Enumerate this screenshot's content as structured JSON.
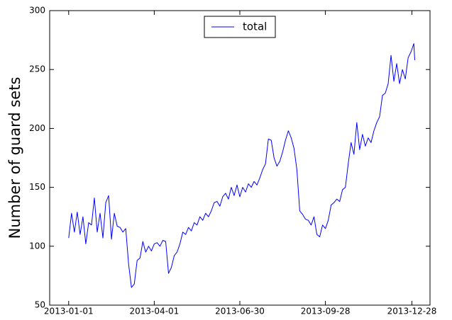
{
  "chart_data": {
    "type": "line",
    "y_label": "Number of guard sets",
    "x": [
      "2013-01-01",
      "2013-01-04",
      "2013-01-07",
      "2013-01-10",
      "2013-01-13",
      "2013-01-16",
      "2013-01-19",
      "2013-01-22",
      "2013-01-25",
      "2013-01-28",
      "2013-01-31",
      "2013-02-03",
      "2013-02-06",
      "2013-02-09",
      "2013-02-12",
      "2013-02-15",
      "2013-02-18",
      "2013-02-21",
      "2013-02-24",
      "2013-02-27",
      "2013-03-02",
      "2013-03-05",
      "2013-03-08",
      "2013-03-11",
      "2013-03-14",
      "2013-03-17",
      "2013-03-20",
      "2013-03-23",
      "2013-03-26",
      "2013-03-29",
      "2013-04-01",
      "2013-04-04",
      "2013-04-07",
      "2013-04-10",
      "2013-04-13",
      "2013-04-16",
      "2013-04-19",
      "2013-04-22",
      "2013-04-25",
      "2013-04-28",
      "2013-05-01",
      "2013-05-04",
      "2013-05-07",
      "2013-05-10",
      "2013-05-13",
      "2013-05-16",
      "2013-05-19",
      "2013-05-22",
      "2013-05-25",
      "2013-05-28",
      "2013-05-31",
      "2013-06-03",
      "2013-06-06",
      "2013-06-09",
      "2013-06-12",
      "2013-06-15",
      "2013-06-18",
      "2013-06-21",
      "2013-06-24",
      "2013-06-27",
      "2013-06-30",
      "2013-07-03",
      "2013-07-06",
      "2013-07-09",
      "2013-07-12",
      "2013-07-15",
      "2013-07-18",
      "2013-07-21",
      "2013-07-24",
      "2013-07-27",
      "2013-07-30",
      "2013-08-02",
      "2013-08-05",
      "2013-08-08",
      "2013-08-11",
      "2013-08-14",
      "2013-08-17",
      "2013-08-20",
      "2013-08-23",
      "2013-08-26",
      "2013-08-29",
      "2013-09-01",
      "2013-09-04",
      "2013-09-07",
      "2013-09-10",
      "2013-09-13",
      "2013-09-16",
      "2013-09-19",
      "2013-09-22",
      "2013-09-25",
      "2013-09-28",
      "2013-10-01",
      "2013-10-04",
      "2013-10-07",
      "2013-10-10",
      "2013-10-13",
      "2013-10-16",
      "2013-10-19",
      "2013-10-22",
      "2013-10-25",
      "2013-10-28",
      "2013-10-31",
      "2013-11-03",
      "2013-11-06",
      "2013-11-09",
      "2013-11-12",
      "2013-11-15",
      "2013-11-18",
      "2013-11-21",
      "2013-11-24",
      "2013-11-27",
      "2013-11-30",
      "2013-12-03",
      "2013-12-06",
      "2013-12-09",
      "2013-12-12",
      "2013-12-15",
      "2013-12-18",
      "2013-12-21",
      "2013-12-24",
      "2013-12-27",
      "2013-12-30",
      "2013-12-31"
    ],
    "series": [
      {
        "name": "total",
        "color": "#0000ff",
        "values": [
          107,
          128,
          112,
          129,
          110,
          125,
          102,
          120,
          118,
          141,
          112,
          128,
          107,
          137,
          143,
          106,
          128,
          117,
          116,
          112,
          115,
          85,
          65,
          68,
          88,
          90,
          104,
          95,
          100,
          96,
          102,
          103,
          100,
          105,
          104,
          77,
          82,
          92,
          95,
          102,
          112,
          110,
          116,
          113,
          120,
          118,
          125,
          122,
          128,
          125,
          130,
          137,
          138,
          134,
          142,
          145,
          140,
          150,
          143,
          152,
          142,
          150,
          146,
          153,
          150,
          155,
          152,
          158,
          165,
          170,
          191,
          190,
          175,
          168,
          172,
          180,
          190,
          198,
          192,
          183,
          165,
          130,
          127,
          123,
          122,
          118,
          125,
          110,
          108,
          118,
          115,
          122,
          135,
          137,
          140,
          138,
          148,
          150,
          170,
          188,
          178,
          205,
          182,
          195,
          185,
          192,
          188,
          198,
          205,
          210,
          228,
          230,
          238,
          262,
          240,
          255,
          238,
          250,
          242,
          260,
          265,
          272,
          258
        ]
      }
    ],
    "xlim": [
      "2012-12-12",
      "2014-01-16"
    ],
    "xticks": [
      "2013-01-01",
      "2013-04-01",
      "2013-06-30",
      "2013-09-28",
      "2013-12-28"
    ],
    "ylim": [
      50,
      300
    ],
    "yticks": [
      50,
      100,
      150,
      200,
      250,
      300
    ],
    "legend": "upper center",
    "grid": false
  }
}
